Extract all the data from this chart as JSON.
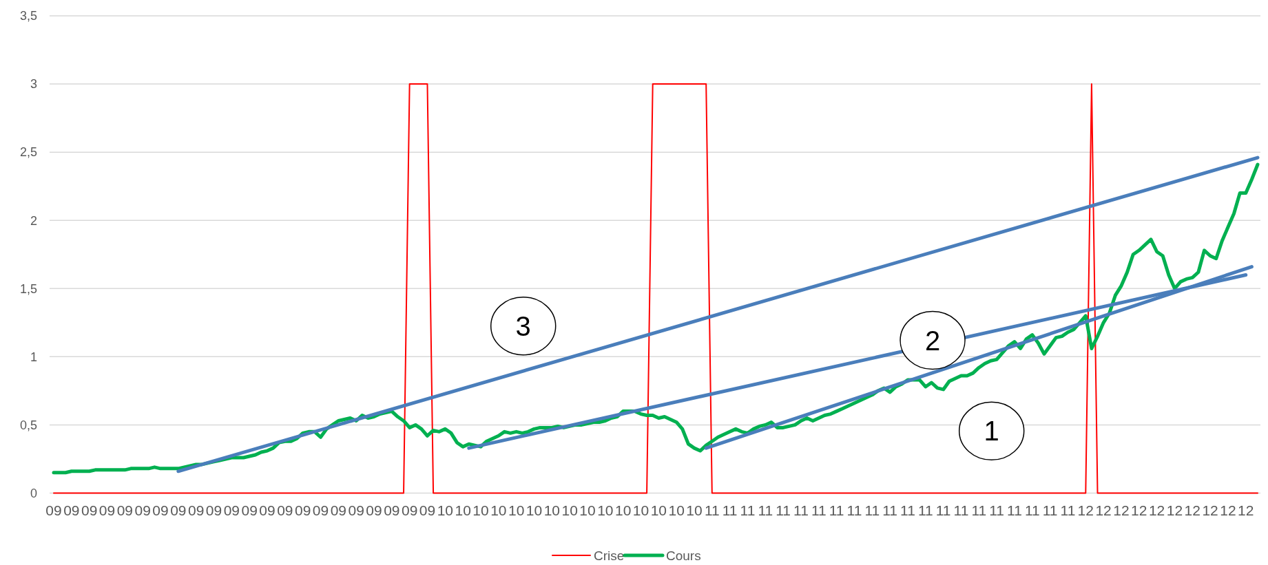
{
  "chart_data": {
    "type": "line",
    "categories": [
      "09",
      null,
      null,
      "09",
      null,
      null,
      "09",
      null,
      null,
      "09",
      null,
      null,
      "09",
      null,
      null,
      "09",
      null,
      null,
      "09",
      null,
      null,
      "09",
      null,
      null,
      "09",
      null,
      null,
      "09",
      null,
      null,
      "09",
      null,
      null,
      "09",
      null,
      null,
      "09",
      null,
      null,
      "09",
      null,
      null,
      "09",
      null,
      null,
      "09",
      null,
      null,
      "09",
      null,
      null,
      "09",
      null,
      null,
      "09",
      null,
      null,
      "09",
      null,
      null,
      "09",
      null,
      null,
      "09",
      null,
      null,
      "10",
      null,
      null,
      "10",
      null,
      null,
      "10",
      null,
      null,
      "10",
      null,
      null,
      "10",
      null,
      null,
      "10",
      null,
      null,
      "10",
      null,
      null,
      "10",
      null,
      null,
      "10",
      null,
      null,
      "10",
      null,
      null,
      "10",
      null,
      null,
      "10",
      null,
      null,
      "10",
      null,
      null,
      "10",
      null,
      null,
      "10",
      null,
      null,
      "11",
      null,
      null,
      "11",
      null,
      null,
      "11",
      null,
      null,
      "11",
      null,
      null,
      "11",
      null,
      null,
      "11",
      null,
      null,
      "11",
      null,
      null,
      "11",
      null,
      null,
      "11",
      null,
      null,
      "11",
      null,
      null,
      "11",
      null,
      null,
      "11",
      null,
      null,
      "11",
      null,
      null,
      "11",
      null,
      null,
      "11",
      null,
      null,
      "11",
      null,
      null,
      "11",
      null,
      null,
      "11",
      null,
      null,
      "11",
      null,
      null,
      "11",
      null,
      null,
      "11",
      null,
      null,
      "12",
      null,
      null,
      "12",
      null,
      null,
      "12",
      null,
      null,
      "12",
      null,
      null,
      "12",
      null,
      null,
      "12",
      null,
      null,
      "12",
      null,
      null,
      "12",
      null,
      null,
      "12",
      null,
      null,
      "12",
      null,
      null
    ],
    "series": [
      {
        "name": "Crise",
        "color": "#ff0000",
        "values": [
          0,
          0,
          0,
          0,
          0,
          0,
          0,
          0,
          0,
          0,
          0,
          0,
          0,
          0,
          0,
          0,
          0,
          0,
          0,
          0,
          0,
          0,
          0,
          0,
          0,
          0,
          0,
          0,
          0,
          0,
          0,
          0,
          0,
          0,
          0,
          0,
          0,
          0,
          0,
          0,
          0,
          0,
          0,
          0,
          0,
          0,
          0,
          0,
          0,
          0,
          0,
          0,
          0,
          0,
          0,
          0,
          0,
          0,
          0,
          0,
          3,
          3,
          3,
          3,
          0,
          0,
          0,
          0,
          0,
          0,
          0,
          0,
          0,
          0,
          0,
          0,
          0,
          0,
          0,
          0,
          0,
          0,
          0,
          0,
          0,
          0,
          0,
          0,
          0,
          0,
          0,
          0,
          0,
          0,
          0,
          0,
          0,
          0,
          0,
          0,
          0,
          3,
          3,
          3,
          3,
          3,
          3,
          3,
          3,
          3,
          3,
          0,
          0,
          0,
          0,
          0,
          0,
          0,
          0,
          0,
          0,
          0,
          0,
          0,
          0,
          0,
          0,
          0,
          0,
          0,
          0,
          0,
          0,
          0,
          0,
          0,
          0,
          0,
          0,
          0,
          0,
          0,
          0,
          0,
          0,
          0,
          0,
          0,
          0,
          0,
          0,
          0,
          0,
          0,
          0,
          0,
          0,
          0,
          0,
          0,
          0,
          0,
          0,
          0,
          0,
          0,
          0,
          0,
          0,
          0,
          0,
          0,
          0,
          0,
          0,
          3,
          0,
          0,
          0,
          0,
          0,
          0,
          0,
          0,
          0,
          0,
          0,
          0,
          0,
          0,
          0,
          0,
          0,
          0,
          0,
          0,
          0,
          0,
          0,
          0,
          0,
          0,
          0,
          0
        ]
      },
      {
        "name": "Cours",
        "color": "#00b050",
        "values": [
          0.15,
          0.15,
          0.15,
          0.16,
          0.16,
          0.16,
          0.16,
          0.17,
          0.17,
          0.17,
          0.17,
          0.17,
          0.17,
          0.18,
          0.18,
          0.18,
          0.18,
          0.19,
          0.18,
          0.18,
          0.18,
          0.18,
          0.19,
          0.2,
          0.21,
          0.21,
          0.22,
          0.23,
          0.24,
          0.25,
          0.26,
          0.26,
          0.26,
          0.27,
          0.28,
          0.3,
          0.31,
          0.33,
          0.37,
          0.38,
          0.38,
          0.4,
          0.44,
          0.45,
          0.45,
          0.41,
          0.47,
          0.5,
          0.53,
          0.54,
          0.55,
          0.53,
          0.57,
          0.55,
          0.56,
          0.58,
          0.59,
          0.6,
          0.56,
          0.53,
          0.48,
          0.5,
          0.47,
          0.42,
          0.46,
          0.45,
          0.47,
          0.44,
          0.37,
          0.34,
          0.36,
          0.35,
          0.34,
          0.38,
          0.4,
          0.42,
          0.45,
          0.44,
          0.45,
          0.44,
          0.45,
          0.47,
          0.48,
          0.48,
          0.48,
          0.49,
          0.48,
          0.49,
          0.5,
          0.5,
          0.51,
          0.52,
          0.52,
          0.53,
          0.55,
          0.56,
          0.6,
          0.6,
          0.6,
          0.58,
          0.57,
          0.57,
          0.55,
          0.56,
          0.54,
          0.52,
          0.47,
          0.36,
          0.33,
          0.31,
          0.35,
          0.38,
          0.41,
          0.43,
          0.45,
          0.47,
          0.45,
          0.44,
          0.47,
          0.49,
          0.5,
          0.52,
          0.48,
          0.48,
          0.49,
          0.5,
          0.53,
          0.55,
          0.53,
          0.55,
          0.57,
          0.58,
          0.6,
          0.62,
          0.64,
          0.66,
          0.68,
          0.7,
          0.72,
          0.75,
          0.77,
          0.74,
          0.78,
          0.8,
          0.83,
          0.83,
          0.83,
          0.78,
          0.81,
          0.77,
          0.76,
          0.82,
          0.84,
          0.86,
          0.86,
          0.88,
          0.92,
          0.95,
          0.97,
          0.98,
          1.03,
          1.08,
          1.11,
          1.06,
          1.13,
          1.16,
          1.1,
          1.02,
          1.08,
          1.14,
          1.15,
          1.18,
          1.2,
          1.25,
          1.3,
          1.06,
          1.15,
          1.25,
          1.32,
          1.45,
          1.52,
          1.62,
          1.75,
          1.78,
          1.82,
          1.86,
          1.77,
          1.74,
          1.6,
          1.5,
          1.55,
          1.57,
          1.58,
          1.62,
          1.78,
          1.74,
          1.72,
          1.85,
          1.95,
          2.05,
          2.2,
          2.2,
          2.3,
          2.41
        ]
      },
      {
        "type": "line",
        "color": "#4a7ebb",
        "values": [
          null,
          null,
          null,
          null,
          null,
          null,
          null,
          null,
          null,
          null,
          null,
          null,
          null,
          null,
          null,
          null,
          null,
          null,
          null,
          null,
          null,
          0.16,
          null,
          null,
          null,
          null,
          null,
          null,
          null,
          null,
          null,
          null,
          null,
          null,
          null,
          null,
          null,
          null,
          null,
          null,
          null,
          null,
          null,
          null,
          null,
          null,
          null,
          null,
          null,
          null,
          null,
          null,
          null,
          null,
          null,
          null,
          null,
          null,
          null,
          null,
          null,
          null,
          null,
          null,
          null,
          null,
          null,
          null,
          null,
          null,
          null,
          null,
          null,
          null,
          null,
          null,
          null,
          null,
          null,
          null,
          null,
          null,
          null,
          null,
          null,
          null,
          null,
          null,
          null,
          null,
          null,
          null,
          null,
          null,
          null,
          null,
          null,
          null,
          null,
          null,
          null,
          null,
          null,
          null,
          null,
          null,
          null,
          null,
          null,
          null,
          null,
          null,
          null,
          null,
          null,
          null,
          null,
          null,
          null,
          null,
          null,
          null,
          null,
          null,
          null,
          null,
          null,
          null,
          null,
          null,
          null,
          null,
          null,
          null,
          null,
          null,
          null,
          null,
          null,
          null,
          null,
          null,
          null,
          null,
          null,
          null,
          null,
          null,
          null,
          null,
          null,
          null,
          null,
          null,
          null,
          null,
          null,
          null,
          null,
          null,
          null,
          null,
          null,
          null,
          null,
          null,
          null,
          null,
          null,
          null,
          null,
          null,
          null,
          null,
          null,
          null,
          null,
          null,
          null,
          null,
          null,
          null,
          null,
          null,
          null,
          null,
          null,
          null,
          null,
          null,
          null,
          null,
          null,
          null,
          null,
          null,
          null,
          null,
          null,
          null,
          null,
          null,
          null,
          2.46
        ]
      },
      {
        "type": "line",
        "color": "#4a7ebb",
        "values": [
          null,
          null,
          null,
          null,
          null,
          null,
          null,
          null,
          null,
          null,
          null,
          null,
          null,
          null,
          null,
          null,
          null,
          null,
          null,
          null,
          null,
          null,
          null,
          null,
          null,
          null,
          null,
          null,
          null,
          null,
          null,
          null,
          null,
          null,
          null,
          null,
          null,
          null,
          null,
          null,
          null,
          null,
          null,
          null,
          null,
          null,
          null,
          null,
          null,
          null,
          null,
          null,
          null,
          null,
          null,
          null,
          null,
          null,
          null,
          null,
          null,
          null,
          null,
          null,
          null,
          null,
          null,
          null,
          null,
          null,
          0.33,
          null,
          null,
          null,
          null,
          null,
          null,
          null,
          null,
          null,
          null,
          null,
          null,
          null,
          null,
          null,
          null,
          null,
          null,
          null,
          null,
          null,
          null,
          null,
          null,
          null,
          null,
          null,
          null,
          null,
          null,
          null,
          null,
          null,
          null,
          null,
          null,
          null,
          null,
          null,
          null,
          null,
          null,
          null,
          null,
          null,
          null,
          null,
          null,
          null,
          null,
          null,
          null,
          null,
          null,
          null,
          null,
          null,
          null,
          null,
          null,
          null,
          null,
          null,
          null,
          null,
          null,
          null,
          null,
          null,
          null,
          null,
          null,
          null,
          null,
          null,
          null,
          null,
          null,
          null,
          null,
          null,
          null,
          null,
          null,
          null,
          null,
          null,
          null,
          null,
          null,
          null,
          null,
          null,
          null,
          null,
          null,
          null,
          null,
          null,
          null,
          null,
          null,
          null,
          null,
          null,
          null,
          null,
          null,
          null,
          null,
          null,
          null,
          null,
          null,
          null,
          null,
          null,
          null,
          null,
          null,
          null,
          null,
          null,
          null,
          null,
          null,
          null,
          null,
          null,
          null,
          1.6,
          null,
          null
        ]
      },
      {
        "type": "line",
        "color": "#4a7ebb",
        "values": [
          null,
          null,
          null,
          null,
          null,
          null,
          null,
          null,
          null,
          null,
          null,
          null,
          null,
          null,
          null,
          null,
          null,
          null,
          null,
          null,
          null,
          null,
          null,
          null,
          null,
          null,
          null,
          null,
          null,
          null,
          null,
          null,
          null,
          null,
          null,
          null,
          null,
          null,
          null,
          null,
          null,
          null,
          null,
          null,
          null,
          null,
          null,
          null,
          null,
          null,
          null,
          null,
          null,
          null,
          null,
          null,
          null,
          null,
          null,
          null,
          null,
          null,
          null,
          null,
          null,
          null,
          null,
          null,
          null,
          null,
          null,
          null,
          null,
          null,
          null,
          null,
          null,
          null,
          null,
          null,
          null,
          null,
          null,
          null,
          null,
          null,
          null,
          null,
          null,
          null,
          null,
          null,
          null,
          null,
          null,
          null,
          null,
          null,
          null,
          null,
          null,
          null,
          null,
          null,
          null,
          null,
          null,
          null,
          null,
          null,
          0.33,
          null,
          null,
          null,
          null,
          null,
          null,
          null,
          null,
          null,
          null,
          null,
          null,
          null,
          null,
          null,
          null,
          null,
          null,
          null,
          null,
          null,
          null,
          null,
          null,
          null,
          null,
          null,
          null,
          null,
          null,
          null,
          null,
          null,
          null,
          null,
          null,
          null,
          null,
          null,
          null,
          null,
          null,
          null,
          null,
          null,
          null,
          null,
          null,
          null,
          null,
          null,
          null,
          null,
          null,
          null,
          null,
          null,
          null,
          null,
          null,
          null,
          null,
          null,
          null,
          null,
          null,
          null,
          null,
          null,
          null,
          null,
          null,
          null,
          null,
          null,
          null,
          null,
          null,
          null,
          null,
          null,
          null,
          null,
          null,
          null,
          null,
          null,
          null,
          null,
          null,
          null,
          1.66,
          null
        ]
      }
    ],
    "ylim": [
      0,
      3.5
    ],
    "yticks": [
      0,
      {
        "value": 0.5,
        "label": "0,5"
      },
      1,
      {
        "value": 1.5,
        "label": "1,5"
      },
      2,
      {
        "value": 2.5,
        "label": "2,5"
      },
      3,
      {
        "value": 3.5,
        "label": "3,5"
      }
    ],
    "grid": "y",
    "legend": "bottom",
    "annotations": [
      "1",
      "2",
      "3"
    ]
  }
}
